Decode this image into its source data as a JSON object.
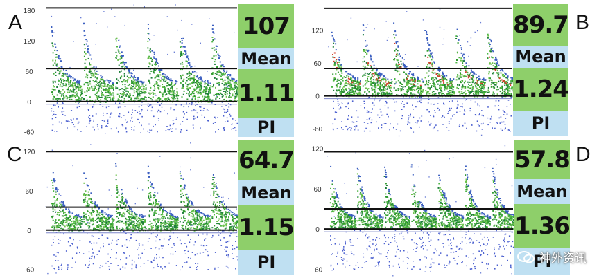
{
  "watermark": {
    "text": "神外资讯"
  },
  "chart_data": [
    {
      "type": "scatter",
      "panel": "A",
      "yticks": [
        "180",
        "120",
        "60",
        "0",
        "-60"
      ],
      "ylim": [
        -70,
        195
      ],
      "mean_line": 65,
      "peak_line": 185,
      "mean": "107",
      "pi": "1.11",
      "mean_label": "Mean",
      "pi_label": "PI",
      "beats": 6
    },
    {
      "type": "scatter",
      "panel": "B",
      "yticks": [
        "120",
        "60",
        "0",
        "-60"
      ],
      "ylim": [
        -75,
        170
      ],
      "mean_line": 50,
      "peak_line": 160,
      "mean": "89.7",
      "pi": "1.24",
      "mean_label": "Mean",
      "pi_label": "PI",
      "beats": 6
    },
    {
      "type": "scatter",
      "panel": "C",
      "yticks": [
        "120",
        "60",
        "0",
        "-60"
      ],
      "ylim": [
        -70,
        135
      ],
      "mean_line": 35,
      "peak_line": 120,
      "mean": "64.7",
      "pi": "1.15",
      "mean_label": "Mean",
      "pi_label": "PI",
      "beats": 6
    },
    {
      "type": "scatter",
      "panel": "D",
      "yticks": [
        "120",
        "60",
        "0",
        "-60"
      ],
      "ylim": [
        -70,
        130
      ],
      "mean_line": 30,
      "peak_line": 115,
      "mean": "57.8",
      "pi": "1.36",
      "mean_label": "Mean",
      "pi_label": "PI",
      "beats": 7
    }
  ]
}
